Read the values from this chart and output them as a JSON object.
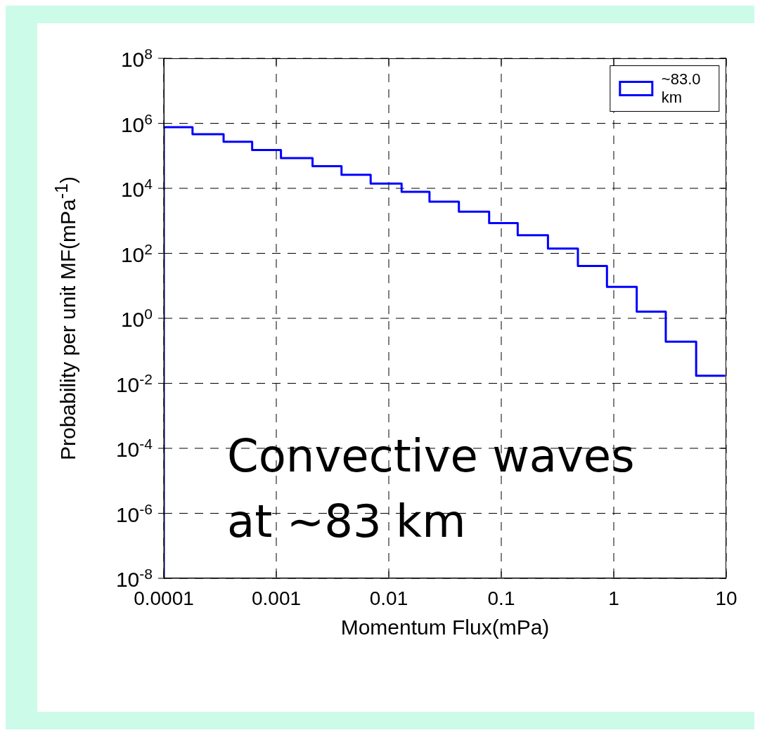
{
  "chart_data": {
    "type": "histogram",
    "xlabel": "Momentum Flux(mPa)",
    "ylabel": "Probability per unit MF(mPa$^{-1}$)",
    "bins": [
      0.0001,
      0.00018,
      0.00034,
      0.00061,
      0.0011,
      0.0021,
      0.0038,
      0.0069,
      0.013,
      0.023,
      0.042,
      0.078,
      0.14,
      0.26,
      0.48,
      0.87,
      1.6,
      2.9,
      5.4,
      9.8
    ],
    "series": [
      {
        "name": "~83.0 km",
        "color": "#0000ff",
        "values": [
          760000,
          460000,
          270000,
          150000,
          85000,
          48000,
          26000,
          14000,
          7800,
          3900,
          1900,
          850,
          360,
          140,
          41,
          9.3,
          1.6,
          0.19,
          0.017
        ]
      }
    ],
    "log": "xy",
    "xlim": [
      0.0001,
      10
    ],
    "xticks": [
      0.0001,
      0.001,
      0.01,
      0.1,
      1,
      10
    ],
    "ylim": [
      1e-08,
      100000000.0
    ],
    "yticks": [
      {
        "value": 1e-08,
        "label": "10$^{-8}$"
      },
      {
        "value": 1e-06,
        "label": "10$^{-6}$"
      },
      {
        "value": 0.0001,
        "label": "10$^{-4}$"
      },
      {
        "value": 0.01,
        "label": "10$^{-2}$"
      },
      {
        "value": 1,
        "label": "10$^{0}$"
      },
      {
        "value": 100,
        "label": "10$^{2}$"
      },
      {
        "value": 10000,
        "label": "10$^{4}$"
      },
      {
        "value": 1000000,
        "label": "10$^{6}$"
      },
      {
        "value": 100000000,
        "label": "10$^{8}$"
      }
    ],
    "grid": true,
    "legend": "top right",
    "line_style": "solid",
    "annotations": [
      "Convective waves at ~83 km"
    ]
  }
}
